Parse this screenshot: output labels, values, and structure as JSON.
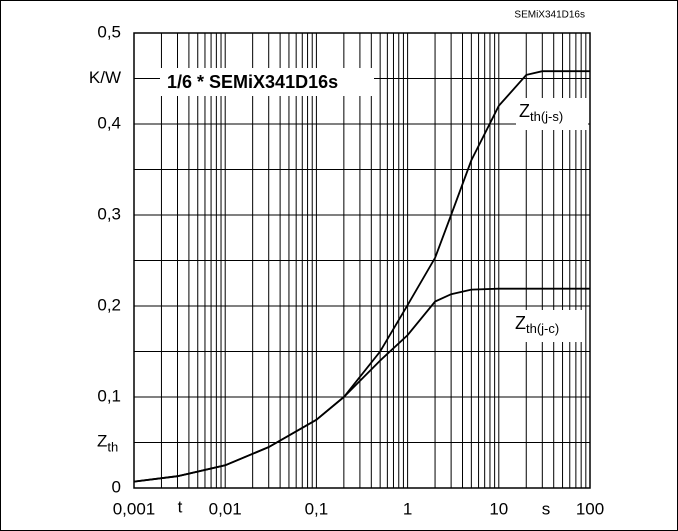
{
  "chart_data": {
    "type": "line",
    "title": "1/6 * SEMiX341D16s",
    "corner_label": "SEMiX341D16s",
    "x_label": "t",
    "x_unit": "s",
    "y_label_main": "Z",
    "y_label_sub": "th",
    "y_unit": "K/W",
    "x_log": true,
    "grid": true,
    "xlim": [
      0.001,
      100
    ],
    "xticks": [
      {
        "value": 0.001,
        "label": "0,001"
      },
      {
        "value": 0.01,
        "label": "0,01"
      },
      {
        "value": 0.1,
        "label": "0,1"
      },
      1,
      10,
      100
    ],
    "ylim": [
      0,
      0.5
    ],
    "yticks": [
      0,
      {
        "value": 0.1,
        "label": "0,1"
      },
      {
        "value": 0.2,
        "label": "0,2"
      },
      {
        "value": 0.3,
        "label": "0,3"
      },
      {
        "value": 0.4,
        "label": "0,4"
      },
      {
        "value": 0.5,
        "label": "0,5"
      }
    ],
    "y_minor_grid": [
      0.05,
      0.15,
      0.25,
      0.35,
      0.45
    ],
    "series": [
      {
        "name_main": "Z",
        "name_sub": "th(j-s)",
        "color": "#000000",
        "x": [
          0.001,
          0.003,
          0.01,
          0.03,
          0.1,
          0.2,
          0.5,
          1,
          2,
          3,
          5,
          10,
          20,
          30,
          50,
          100
        ],
        "values": [
          0.007,
          0.013,
          0.025,
          0.045,
          0.075,
          0.1,
          0.15,
          0.201,
          0.253,
          0.3,
          0.36,
          0.42,
          0.454,
          0.458,
          0.458,
          0.458
        ]
      },
      {
        "name_main": "Z",
        "name_sub": "th(j-c)",
        "color": "#000000",
        "x": [
          0.001,
          0.003,
          0.01,
          0.03,
          0.1,
          0.2,
          0.5,
          1,
          2,
          3,
          5,
          10,
          20,
          50,
          100
        ],
        "values": [
          0.007,
          0.013,
          0.025,
          0.045,
          0.075,
          0.1,
          0.14,
          0.168,
          0.205,
          0.213,
          0.218,
          0.219,
          0.219,
          0.219,
          0.219
        ]
      }
    ]
  }
}
